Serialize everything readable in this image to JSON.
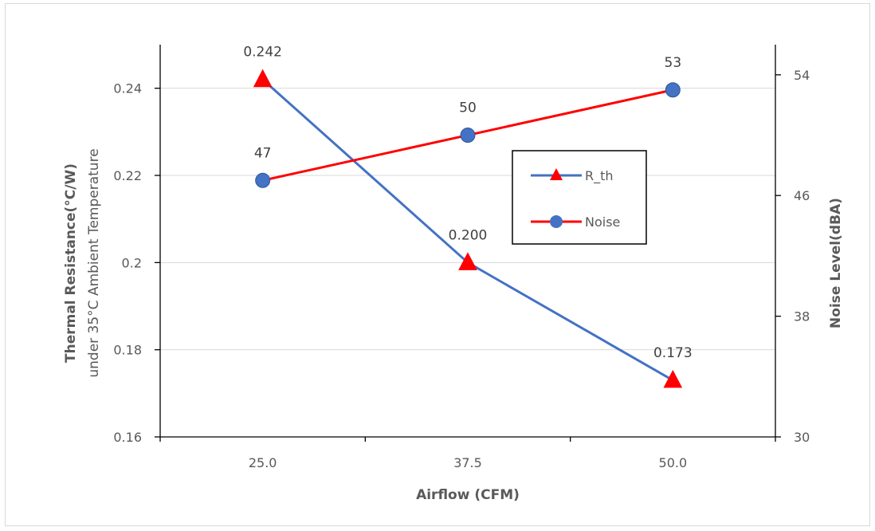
{
  "chart_data": {
    "type": "line",
    "categories": [
      "25.0",
      "37.5",
      "50.0"
    ],
    "x": [
      25.0,
      37.5,
      50.0
    ],
    "xlabel": "Airflow (CFM)",
    "ylabel_line1": "Thermal Resistance(°C/W)",
    "ylabel_line2": "under 35°C Ambient Temperature",
    "y2label": "Noise Level(dBA)",
    "ylim": [
      0.16,
      0.25
    ],
    "y_ticks": [
      "0.16",
      "0.18",
      "0.2",
      "0.22",
      "0.24"
    ],
    "y_tick_values": [
      0.16,
      0.18,
      0.2,
      0.22,
      0.24
    ],
    "y2lim": [
      30,
      56
    ],
    "y2_ticks": [
      "30",
      "38",
      "46",
      "54"
    ],
    "y2_tick_values": [
      30,
      38,
      46,
      54
    ],
    "grid": true,
    "legend_position": "center-right",
    "series": [
      {
        "name": "R_th",
        "axis": "left",
        "values": [
          0.242,
          0.2,
          0.173
        ],
        "labels": [
          "0.242",
          "0.200",
          "0.173"
        ],
        "line_color": "#4472c4",
        "marker": "triangle",
        "marker_color": "#ff0000"
      },
      {
        "name": "Noise",
        "axis": "right",
        "values": [
          47,
          50,
          53
        ],
        "labels": [
          "47",
          "50",
          "53"
        ],
        "line_color": "#ff0000",
        "marker": "circle",
        "marker_color": "#4472c4"
      }
    ]
  }
}
